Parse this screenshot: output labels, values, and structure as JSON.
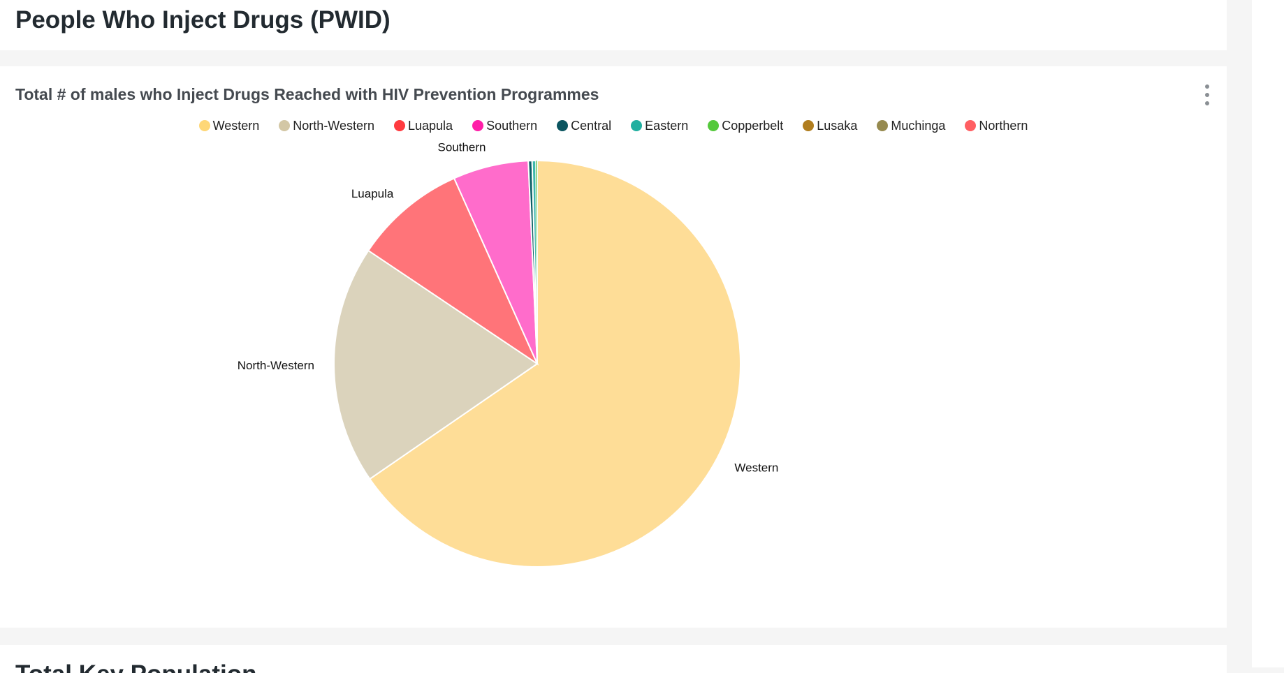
{
  "page": {
    "section_title": "People Who Inject Drugs (PWID)",
    "next_section_title": "Total Key Population"
  },
  "chart_card": {
    "menu_icon": "kebab-menu-icon"
  },
  "chart_data": {
    "type": "pie",
    "title": "Total # of males who Inject Drugs Reached with HIV Prevention Programmes",
    "legend_position": "top",
    "slices": [
      {
        "name": "Western",
        "value": 65.4,
        "color": "#fedd97",
        "show_label": true
      },
      {
        "name": "North-Western",
        "value": 19.0,
        "color": "#dbd3bc",
        "show_label": true
      },
      {
        "name": "Luapula",
        "value": 8.9,
        "color": "#ff7479",
        "show_label": true
      },
      {
        "name": "Southern",
        "value": 6.0,
        "color": "#ff6ccb",
        "show_label": true
      },
      {
        "name": "Central",
        "value": 0.3,
        "color": "#0b5f66",
        "show_label": false
      },
      {
        "name": "Eastern",
        "value": 0.3,
        "color": "#3fb8ab",
        "show_label": false
      },
      {
        "name": "Copperbelt",
        "value": 0.1,
        "color": "#52c23b",
        "show_label": false
      },
      {
        "name": "Lusaka",
        "value": 0.0,
        "color": "#b07d1e",
        "show_label": false
      },
      {
        "name": "Muchinga",
        "value": 0.0,
        "color": "#968a4f",
        "show_label": false
      },
      {
        "name": "Northern",
        "value": 0.0,
        "color": "#ff5f62",
        "show_label": false
      }
    ],
    "legend_colors": [
      "#fed777",
      "#d3c7a5",
      "#ff3a3f",
      "#ff1fa8",
      "#0b5560",
      "#21afa0",
      "#55c93c",
      "#b07d1e",
      "#968a4f",
      "#ff5f62"
    ]
  }
}
